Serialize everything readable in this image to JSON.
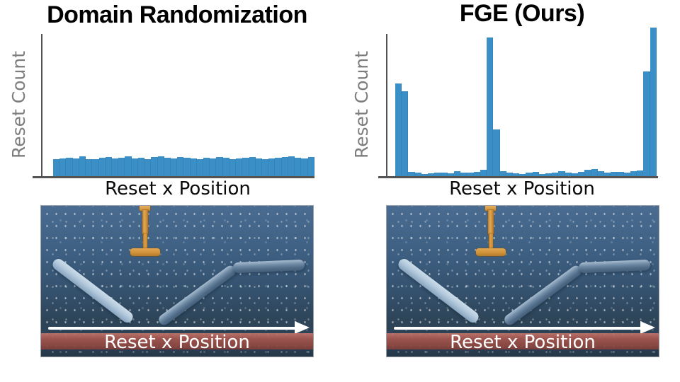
{
  "figure": {
    "left": {
      "title": "Domain Randomization",
      "ylabel": "Reset Count",
      "xlabel": "Reset x Position"
    },
    "right": {
      "title": "FGE (Ours)",
      "ylabel": "Reset Count",
      "xlabel": "Reset x Position"
    }
  },
  "chart_data": [
    {
      "type": "bar",
      "title": "Domain Randomization",
      "xlabel": "Reset x Position",
      "ylabel": "Reset Count",
      "n_bins": 40,
      "bar_color": "#3a90c6",
      "axes": {
        "x_ticks": "none",
        "y_ticks": "none",
        "grid": false
      },
      "values_unit": "fraction of plot height (no numeric axis labels shown)",
      "values": [
        0.125,
        0.13,
        0.135,
        0.128,
        0.142,
        0.126,
        0.122,
        0.132,
        0.138,
        0.128,
        0.135,
        0.142,
        0.13,
        0.134,
        0.124,
        0.138,
        0.142,
        0.133,
        0.127,
        0.138,
        0.133,
        0.128,
        0.122,
        0.132,
        0.128,
        0.138,
        0.133,
        0.124,
        0.13,
        0.134,
        0.14,
        0.128,
        0.122,
        0.128,
        0.133,
        0.138,
        0.143,
        0.133,
        0.128,
        0.14
      ]
    },
    {
      "type": "bar",
      "title": "FGE (Ours)",
      "xlabel": "Reset x Position",
      "ylabel": "Reset Count",
      "n_bins": 40,
      "bar_color": "#3a90c6",
      "axes": {
        "x_ticks": "none",
        "y_ticks": "none",
        "grid": false
      },
      "values_unit": "fraction of plot height (no numeric axis labels shown)",
      "values": [
        0.655,
        0.6,
        0.035,
        0.028,
        0.02,
        0.025,
        0.03,
        0.028,
        0.025,
        0.04,
        0.03,
        0.028,
        0.035,
        0.05,
        0.975,
        0.33,
        0.04,
        0.03,
        0.025,
        0.02,
        0.03,
        0.035,
        0.02,
        0.025,
        0.03,
        0.04,
        0.03,
        0.025,
        0.035,
        0.05,
        0.055,
        0.04,
        0.03,
        0.035,
        0.035,
        0.03,
        0.04,
        0.045,
        0.74,
        1.045
      ]
    }
  ],
  "sim": {
    "label": "Reset x Position",
    "colors": {
      "background_top": "#4a6c90",
      "background_bottom": "#233749",
      "peg_orange": "#d6973f",
      "rod_light_blue": "#b3c9dc",
      "rod_dark_blue": "#4e6a86",
      "strip_red": "#a2554e",
      "arrow_white": "#ffffff"
    }
  },
  "style_colors": {
    "bar_blue": "#3a90c6",
    "axis_gray": "#545454",
    "ylabel_gray": "#7d7d7d"
  }
}
